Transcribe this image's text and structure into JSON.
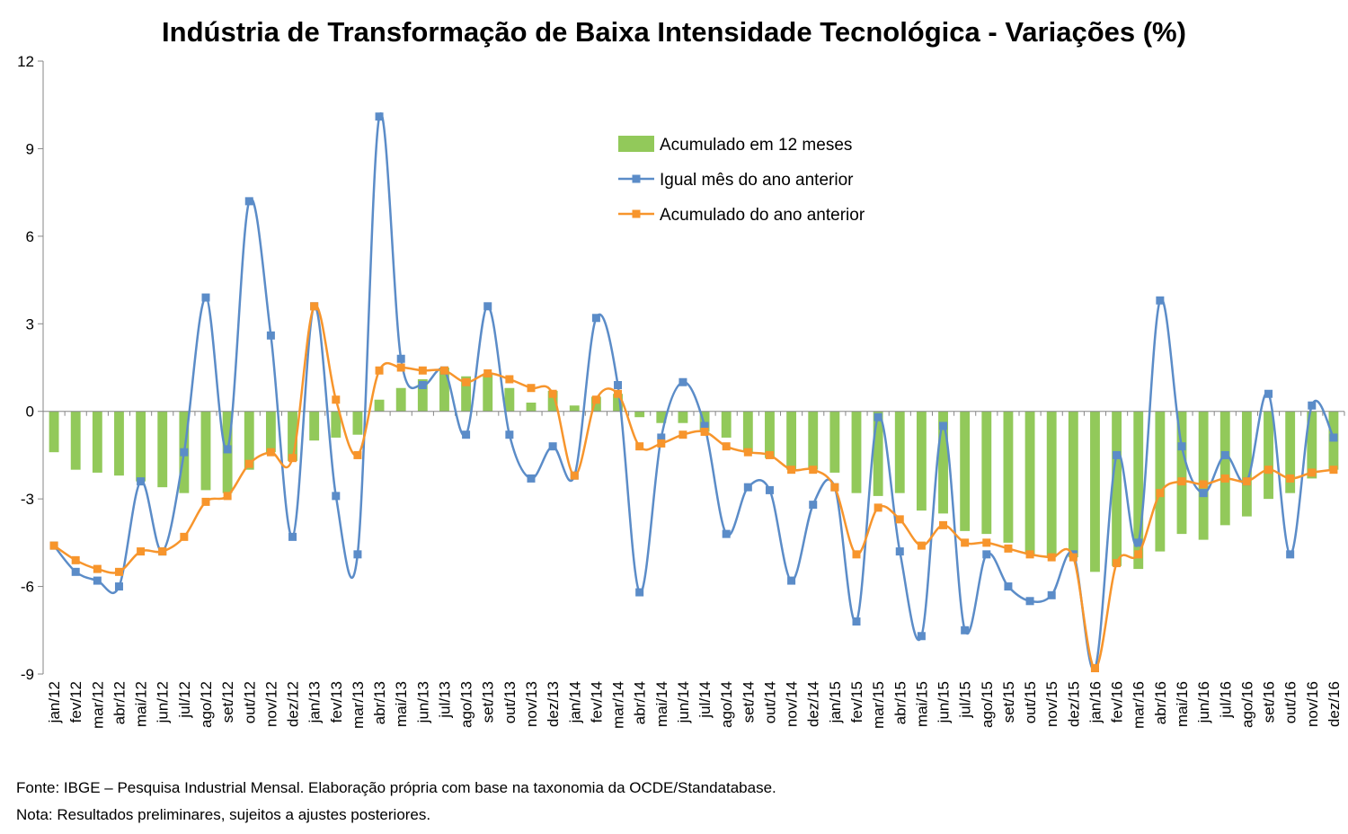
{
  "chart_data": {
    "type": "bar+line",
    "title": "Indústria de Transformação de Baixa Intensidade Tecnológica - Variações (%)",
    "xlabel": "",
    "ylabel": "",
    "ylim": [
      -9,
      12
    ],
    "yticks": [
      -9,
      -6,
      -3,
      0,
      3,
      6,
      9,
      12
    ],
    "grid": false,
    "legend_position": "top-center",
    "categories": [
      "jan/12",
      "fev/12",
      "mar/12",
      "abr/12",
      "mai/12",
      "jun/12",
      "jul/12",
      "ago/12",
      "set/12",
      "out/12",
      "nov/12",
      "dez/12",
      "jan/13",
      "fev/13",
      "mar/13",
      "abr/13",
      "mai/13",
      "jun/13",
      "jul/13",
      "ago/13",
      "set/13",
      "out/13",
      "nov/13",
      "dez/13",
      "jan/14",
      "fev/14",
      "mar/14",
      "abr/14",
      "mai/14",
      "jun/14",
      "jul/14",
      "ago/14",
      "set/14",
      "out/14",
      "nov/14",
      "dez/14",
      "jan/15",
      "fev/15",
      "mar/15",
      "abr/15",
      "mai/15",
      "jun/15",
      "jul/15",
      "ago/15",
      "set/15",
      "out/15",
      "nov/15",
      "dez/15",
      "jan/16",
      "fev/16",
      "mar/16",
      "abr/16",
      "mai/16",
      "jun/16",
      "jul/16",
      "ago/16",
      "set/16",
      "out/16",
      "nov/16",
      "dez/16"
    ],
    "series": [
      {
        "name": "Acumulado em 12 meses",
        "type": "bar",
        "color": "#92C95A",
        "values": [
          -1.4,
          -2.0,
          -2.1,
          -2.2,
          -2.4,
          -2.6,
          -2.8,
          -2.7,
          -2.8,
          -2.0,
          -1.4,
          -1.7,
          -1.0,
          -0.9,
          -0.8,
          0.4,
          0.8,
          1.1,
          1.5,
          1.2,
          1.3,
          0.8,
          0.3,
          0.7,
          0.2,
          0.5,
          0.6,
          -0.2,
          -0.4,
          -0.4,
          -0.7,
          -0.9,
          -1.4,
          -1.6,
          -2.0,
          -2.0,
          -2.1,
          -2.8,
          -2.9,
          -2.8,
          -3.4,
          -3.5,
          -4.1,
          -4.2,
          -4.5,
          -4.9,
          -5.0,
          -5.0,
          -5.5,
          -5.3,
          -5.4,
          -4.8,
          -4.2,
          -4.4,
          -3.9,
          -3.6,
          -3.0,
          -2.8,
          -2.3,
          -2.0
        ]
      },
      {
        "name": "Igual mês do ano anterior",
        "type": "line",
        "color": "#5B8CC8",
        "values": [
          -4.6,
          -5.5,
          -5.8,
          -6.0,
          -2.4,
          -4.8,
          -1.4,
          3.9,
          -1.3,
          7.2,
          2.6,
          -4.3,
          3.6,
          -2.9,
          -4.9,
          10.1,
          1.8,
          0.9,
          1.4,
          -0.8,
          3.6,
          -0.8,
          -2.3,
          -1.2,
          -2.2,
          3.2,
          0.9,
          -6.2,
          -0.9,
          1.0,
          -0.5,
          -4.2,
          -2.6,
          -2.7,
          -5.8,
          -3.2,
          -2.6,
          -7.2,
          -0.2,
          -4.8,
          -7.7,
          -0.5,
          -7.5,
          -4.9,
          -6.0,
          -6.5,
          -6.3,
          -4.9,
          -8.8,
          -1.5,
          -4.5,
          3.8,
          -1.2,
          -2.8,
          -1.5,
          -2.4,
          0.6,
          -4.9,
          0.2,
          -0.9
        ]
      },
      {
        "name": "Acumulado do ano anterior",
        "type": "line",
        "color": "#F7952C",
        "values": [
          -4.6,
          -5.1,
          -5.4,
          -5.5,
          -4.8,
          -4.8,
          -4.3,
          -3.1,
          -2.9,
          -1.8,
          -1.4,
          -1.6,
          3.6,
          0.4,
          -1.5,
          1.4,
          1.5,
          1.4,
          1.4,
          1.0,
          1.3,
          1.1,
          0.8,
          0.6,
          -2.2,
          0.4,
          0.6,
          -1.2,
          -1.1,
          -0.8,
          -0.7,
          -1.2,
          -1.4,
          -1.5,
          -2.0,
          -2.0,
          -2.6,
          -4.9,
          -3.3,
          -3.7,
          -4.6,
          -3.9,
          -4.5,
          -4.5,
          -4.7,
          -4.9,
          -5.0,
          -5.0,
          -8.8,
          -5.2,
          -4.9,
          -2.8,
          -2.4,
          -2.5,
          -2.3,
          -2.4,
          -2.0,
          -2.3,
          -2.1,
          -2.0
        ]
      }
    ]
  },
  "footnotes": {
    "fonte": "Fonte: IBGE – Pesquisa Industrial Mensal. Elaboração própria com base na taxonomia da OCDE/Standatabase.",
    "nota": "Nota: Resultados preliminares, sujeitos a ajustes posteriores."
  }
}
